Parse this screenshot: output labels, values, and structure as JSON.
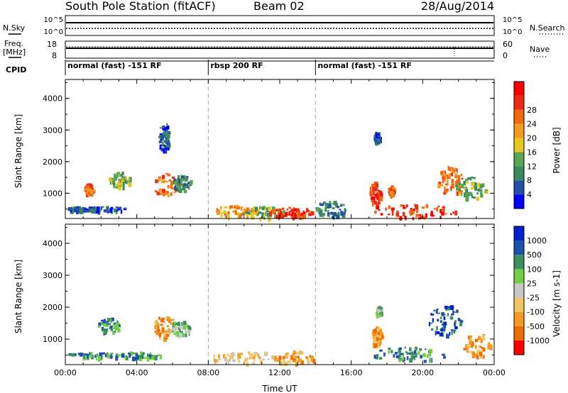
{
  "header": {
    "station": "South Pole Station (fitACF)",
    "beam": "Beam 02",
    "date": "28/Aug/2014"
  },
  "status_panels": {
    "nsky_label": "N.Sky",
    "nsearch_label": "N.Search",
    "noise_ticks": [
      "10^5",
      "10^0"
    ],
    "freq_label_1": "Freq.",
    "freq_label_2": "[MHz]",
    "freq_ticks": [
      "18",
      "8"
    ],
    "nave_label": "Nave",
    "nave_ticks": [
      "60",
      "0"
    ],
    "cpid_label": "CPID",
    "programs": [
      {
        "name": "normal (fast) -151 RF",
        "start_hour": 0,
        "end_hour": 8
      },
      {
        "name": "rbsp 200 RF",
        "start_hour": 8,
        "end_hour": 14
      },
      {
        "name": "normal (fast) -151 RF",
        "start_hour": 14,
        "end_hour": 24
      }
    ]
  },
  "colors": {
    "power_scale": [
      "#0000ff",
      "#234fa8",
      "#3a8a5e",
      "#5aa550",
      "#e7c820",
      "#f39a1f",
      "#f26a10",
      "#ee2a10",
      "#ff0000"
    ],
    "velocity_scale": [
      "#ff0000",
      "#f06a00",
      "#f59a20",
      "#f2c560",
      "#c8c8c8",
      "#70d040",
      "#3d8f5f",
      "#1d4fae",
      "#0022cc"
    ]
  },
  "chart_data": [
    {
      "type": "heatmap",
      "title": "Power",
      "xlabel": "",
      "ylabel": "Slant Range [km]",
      "xlim": [
        0,
        24
      ],
      "ylim": [
        200,
        4600
      ],
      "y_ticks": [
        "1000",
        "2000",
        "3000",
        "4000"
      ],
      "colorbar_label": "Power [dB]",
      "colorbar_ticks": [
        "4",
        "8",
        "12",
        "16",
        "20",
        "24",
        "28"
      ],
      "blobs": [
        {
          "t": 0.6,
          "r": 520,
          "dt": 0.6,
          "dr": 70,
          "level": 1
        },
        {
          "t": 2.0,
          "r": 520,
          "dt": 1.6,
          "dr": 80,
          "level": 1
        },
        {
          "t": 1.3,
          "r": 1150,
          "dt": 0.25,
          "dr": 180,
          "level": 6
        },
        {
          "t": 3.0,
          "r": 1450,
          "dt": 0.6,
          "dr": 250,
          "level": 3
        },
        {
          "t": 5.6,
          "r": 1300,
          "dt": 0.8,
          "dr": 350,
          "level": 6
        },
        {
          "t": 6.5,
          "r": 1350,
          "dt": 0.5,
          "dr": 250,
          "level": 2
        },
        {
          "t": 5.5,
          "r": 2800,
          "dt": 0.3,
          "dr": 500,
          "level": 1
        },
        {
          "t": 9.5,
          "r": 450,
          "dt": 1.2,
          "dr": 180,
          "level": 5
        },
        {
          "t": 11.0,
          "r": 400,
          "dt": 1.3,
          "dr": 200,
          "level": 3
        },
        {
          "t": 12.6,
          "r": 420,
          "dt": 1.2,
          "dr": 170,
          "level": 7
        },
        {
          "t": 14.8,
          "r": 500,
          "dt": 0.9,
          "dr": 280,
          "level": 2
        },
        {
          "t": 17.3,
          "r": 1000,
          "dt": 0.3,
          "dr": 400,
          "level": 7
        },
        {
          "t": 17.4,
          "r": 2800,
          "dt": 0.15,
          "dr": 180,
          "level": 1
        },
        {
          "t": 18.2,
          "r": 1100,
          "dt": 0.2,
          "dr": 150,
          "level": 6
        },
        {
          "t": 19.5,
          "r": 450,
          "dt": 2.3,
          "dr": 220,
          "level": 7
        },
        {
          "t": 21.5,
          "r": 1400,
          "dt": 0.7,
          "dr": 500,
          "level": 6
        },
        {
          "t": 22.7,
          "r": 1200,
          "dt": 0.9,
          "dr": 350,
          "level": 3
        }
      ]
    },
    {
      "type": "heatmap",
      "title": "Velocity",
      "xlabel": "Time UT",
      "ylabel": "Slant Range [km]",
      "xlim": [
        0,
        24
      ],
      "ylim": [
        200,
        4600
      ],
      "x_ticks": [
        "00:00",
        "04:00",
        "08:00",
        "12:00",
        "16:00",
        "20:00",
        "00:00"
      ],
      "y_ticks": [
        "1000",
        "2000",
        "3000",
        "4000"
      ],
      "colorbar_label": "Velocity [m s-1]",
      "colorbar_ticks": [
        "1000",
        "500",
        "100",
        "25",
        "-25",
        "-100",
        "-500",
        "-1000"
      ],
      "blobs": [
        {
          "t": 1.5,
          "r": 520,
          "dt": 1.5,
          "dr": 80,
          "level": 6
        },
        {
          "t": 4.0,
          "r": 520,
          "dt": 1.3,
          "dr": 100,
          "level": 6
        },
        {
          "t": 2.4,
          "r": 1450,
          "dt": 0.6,
          "dr": 250,
          "level": 6
        },
        {
          "t": 5.5,
          "r": 1400,
          "dt": 0.6,
          "dr": 350,
          "level": 2
        },
        {
          "t": 6.4,
          "r": 1350,
          "dt": 0.6,
          "dr": 250,
          "level": 5
        },
        {
          "t": 10.0,
          "r": 450,
          "dt": 2.0,
          "dr": 200,
          "level": 3
        },
        {
          "t": 12.8,
          "r": 450,
          "dt": 1.2,
          "dr": 200,
          "level": 2
        },
        {
          "t": 17.4,
          "r": 1100,
          "dt": 0.3,
          "dr": 350,
          "level": 2
        },
        {
          "t": 17.5,
          "r": 1900,
          "dt": 0.15,
          "dr": 150,
          "level": 5
        },
        {
          "t": 19.2,
          "r": 550,
          "dt": 2.2,
          "dr": 220,
          "level": 6
        },
        {
          "t": 21.2,
          "r": 1600,
          "dt": 0.9,
          "dr": 500,
          "level": 7
        },
        {
          "t": 23.0,
          "r": 800,
          "dt": 0.8,
          "dr": 400,
          "level": 2
        }
      ]
    }
  ]
}
